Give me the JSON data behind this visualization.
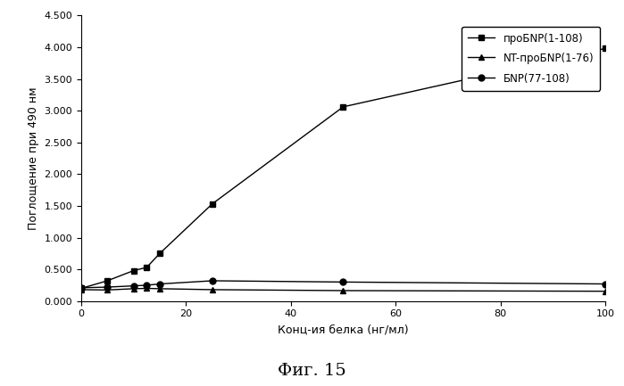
{
  "series": [
    {
      "label": "пroБNP(1-108)",
      "label_display": "пpoБNP(1-108)",
      "x": [
        0,
        5,
        10,
        12.5,
        15,
        25,
        50,
        100
      ],
      "y": [
        0.2,
        0.32,
        0.48,
        0.53,
        0.75,
        1.53,
        3.06,
        3.98
      ],
      "marker": "s",
      "color": "#000000",
      "linestyle": "-"
    },
    {
      "label": "NT-пpoБNP(1-76)",
      "label_display": "NT-пpoБNP(1-76)",
      "x": [
        0,
        5,
        10,
        12.5,
        15,
        25,
        50,
        100
      ],
      "y": [
        0.18,
        0.175,
        0.195,
        0.2,
        0.195,
        0.18,
        0.165,
        0.155
      ],
      "marker": "^",
      "color": "#000000",
      "linestyle": "-"
    },
    {
      "label": "БNP(77-108)",
      "label_display": "БNP(77-108)",
      "x": [
        0,
        5,
        10,
        12.5,
        15,
        25,
        50,
        100
      ],
      "y": [
        0.21,
        0.22,
        0.24,
        0.25,
        0.27,
        0.32,
        0.3,
        0.27
      ],
      "marker": "o",
      "color": "#000000",
      "linestyle": "-"
    }
  ],
  "xlabel": "Конц-ия белка (нг/мл)",
  "ylabel": "Поглощение при 490 нм",
  "title": "Фиг. 15",
  "xlim": [
    0,
    100
  ],
  "ylim": [
    0.0,
    4.5
  ],
  "yticks": [
    0.0,
    0.5,
    1.0,
    1.5,
    2.0,
    2.5,
    3.0,
    3.5,
    4.0,
    4.5
  ],
  "xticks": [
    0,
    20,
    40,
    60,
    80,
    100
  ],
  "background_color": "#ffffff"
}
